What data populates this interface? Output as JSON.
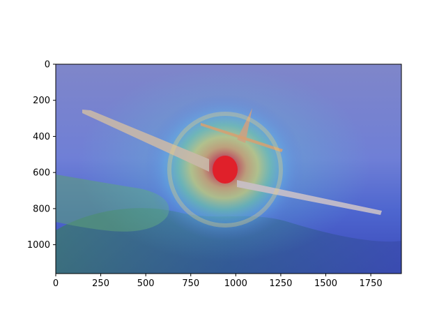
{
  "chart_data": {
    "type": "heatmap",
    "title": "",
    "xlabel": "",
    "ylabel": "",
    "image_width": 1920,
    "image_height": 1160,
    "xlim": [
      0,
      1920
    ],
    "ylim": [
      1160,
      0
    ],
    "y_inverted": true,
    "grid": false,
    "xticks": [
      0,
      250,
      500,
      750,
      1000,
      1250,
      1500,
      1750
    ],
    "yticks": [
      0,
      200,
      400,
      600,
      800,
      1000
    ],
    "xtick_labels": [
      "0",
      "250",
      "500",
      "750",
      "1000",
      "1250",
      "1500",
      "1750"
    ],
    "ytick_labels": [
      "0",
      "200",
      "400",
      "600",
      "800",
      "1000"
    ],
    "colormap": "jet",
    "heatmap_peak": {
      "x": 940,
      "y": 580
    },
    "subject": "propeller aircraft over landscape with attention heatmap overlay"
  }
}
